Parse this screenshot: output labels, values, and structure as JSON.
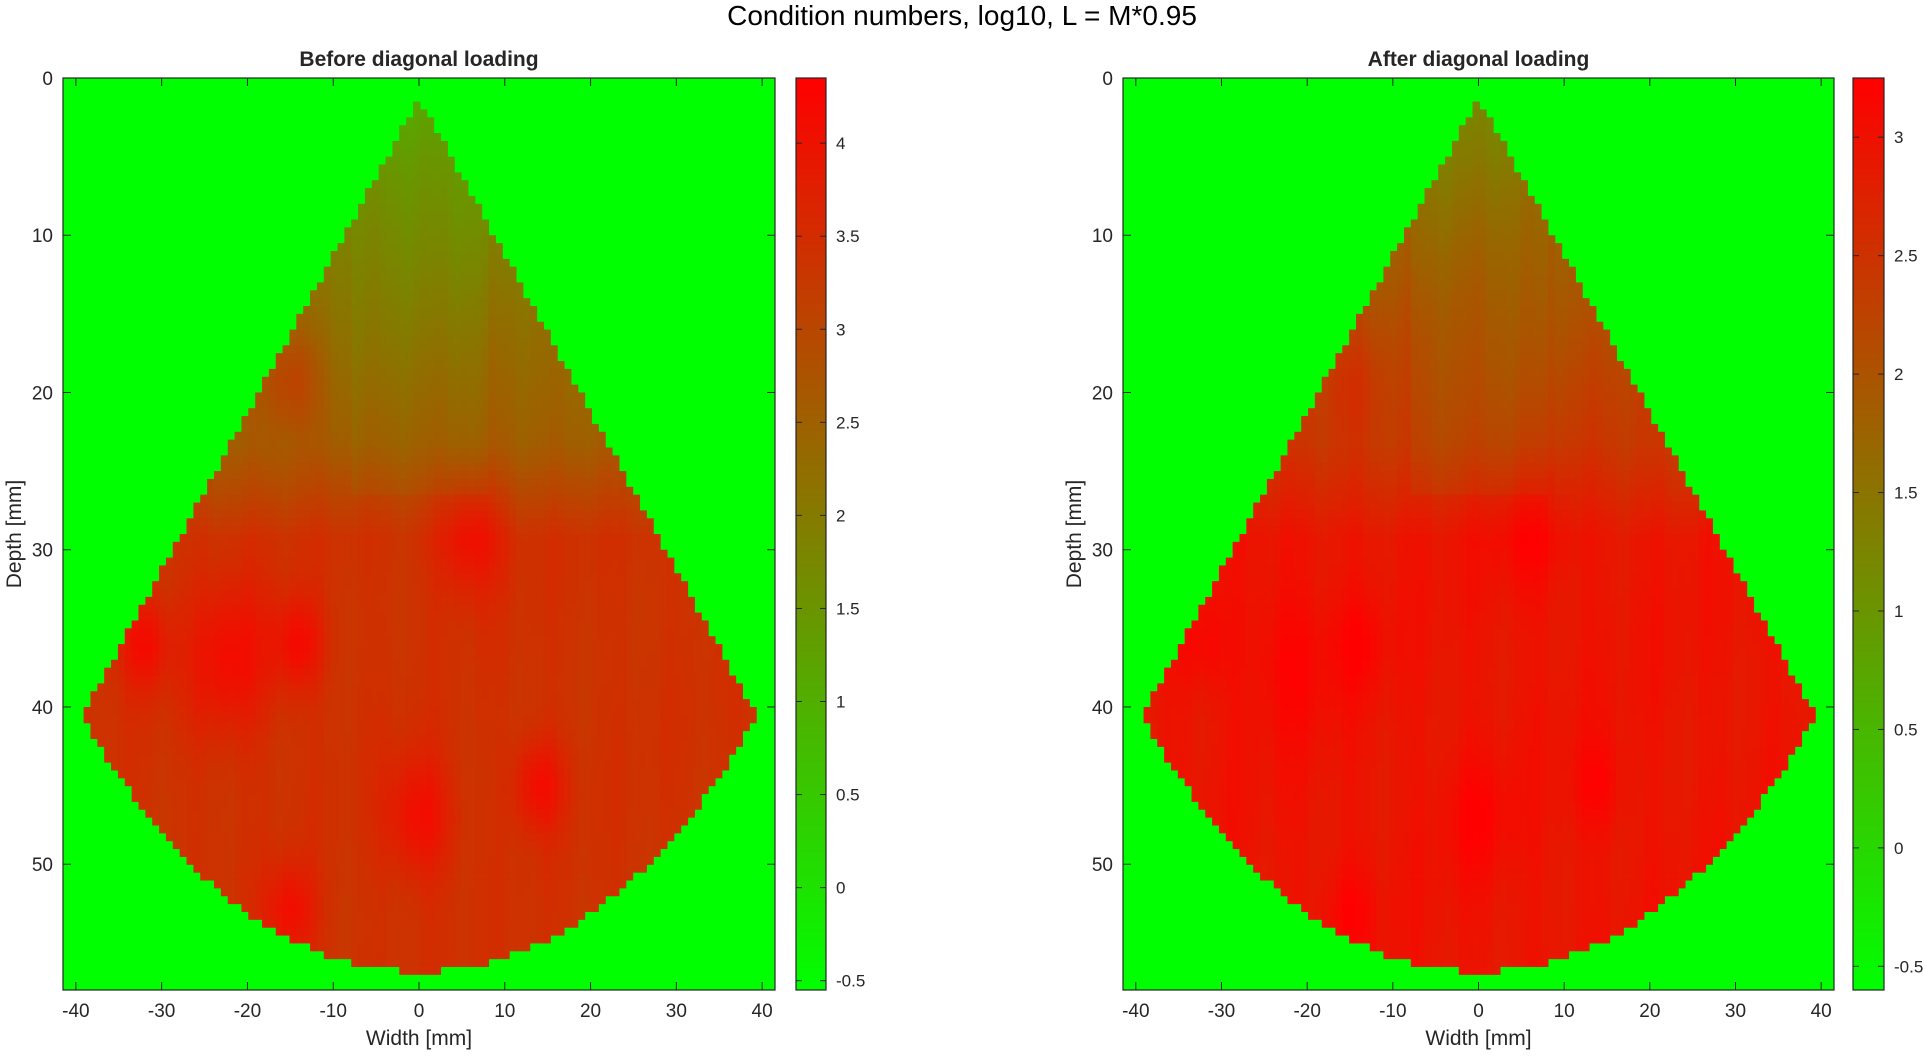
{
  "figure": {
    "title": "Condition numbers, log10, L = M*0.95"
  },
  "colors": {
    "low": "#00ff00",
    "high": "#ff0000",
    "axis": "#262626"
  },
  "chart_data": [
    {
      "type": "heatmap",
      "title": "Before diagonal loading",
      "xlabel": "Width [mm]",
      "ylabel": "Depth [mm]",
      "xlim": [
        -41.5,
        41.5
      ],
      "ylim": [
        0,
        58
      ],
      "y_reversed": true,
      "xticks": [
        -40,
        -30,
        -20,
        -10,
        0,
        10,
        20,
        30,
        40
      ],
      "yticks": [
        0,
        10,
        20,
        30,
        40,
        50
      ],
      "colormap": "green-to-red",
      "background_value": -0.55,
      "clim": [
        -0.55,
        4.35
      ],
      "colorbar_ticks": [
        -0.5,
        0,
        0.5,
        1,
        1.5,
        2,
        2.5,
        3,
        3.5,
        4
      ],
      "colorbar_tick_labels": [
        "-0.5",
        "0",
        "0.5",
        "1",
        "1.5",
        "2",
        "2.5",
        "3",
        "3.5",
        "4"
      ],
      "sector": {
        "apex_depth": 1.3,
        "half_angle_deg": 45,
        "max_radius": 55.5,
        "side_corner_depth": 40
      },
      "typical_values": {
        "near_apex": 1.2,
        "upper_region": 2.6,
        "main_region": 3.4,
        "hot_spots": 4.0
      }
    },
    {
      "type": "heatmap",
      "title": "After diagonal loading",
      "xlabel": "Width [mm]",
      "ylabel": "Depth [mm]",
      "xlim": [
        -41.5,
        41.5
      ],
      "ylim": [
        0,
        58
      ],
      "y_reversed": true,
      "xticks": [
        -40,
        -30,
        -20,
        -10,
        0,
        10,
        20,
        30,
        40
      ],
      "yticks": [
        0,
        10,
        20,
        30,
        40,
        50
      ],
      "colormap": "green-to-red",
      "background_value": -0.6,
      "clim": [
        -0.6,
        3.25
      ],
      "colorbar_ticks": [
        -0.5,
        0,
        0.5,
        1,
        1.5,
        2,
        2.5,
        3
      ],
      "colorbar_tick_labels": [
        "-0.5",
        "0",
        "0.5",
        "1",
        "1.5",
        "2",
        "2.5",
        "3"
      ],
      "sector": {
        "apex_depth": 1.3,
        "half_angle_deg": 45,
        "max_radius": 55.5,
        "side_corner_depth": 40
      },
      "typical_values": {
        "near_apex": 1.3,
        "upper_region": 2.4,
        "main_region": 2.95,
        "hot_spots": 3.15
      }
    }
  ]
}
